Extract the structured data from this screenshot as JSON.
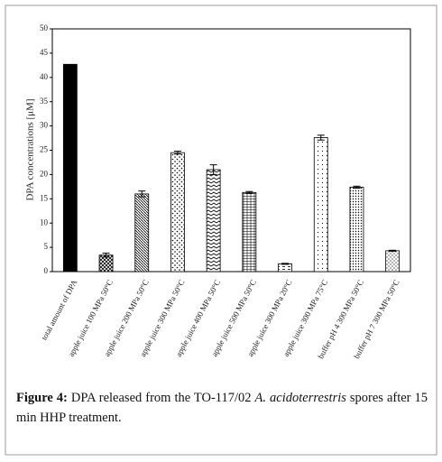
{
  "chart_data": {
    "type": "bar",
    "ylabel": "DPA concentrations  [μM]",
    "categories": [
      "total amount of DPA",
      "apple juice  100 MPa 50°C",
      "apple juice  200 MPa 50°C",
      "apple juice  300 MPa 50°C",
      "apple juice  400 MPa 50°C",
      "apple juice  500 MPa 50°C",
      "apple juice  300 MPa 20°C",
      "apple juice  300 MPa 75°C",
      "buffer pH 4  300 MPa 50°C",
      "buffer pH 7  300 MPa 50°C"
    ],
    "values": [
      42.7,
      3.4,
      16.0,
      24.5,
      21.0,
      16.3,
      1.6,
      27.6,
      17.4,
      4.3
    ],
    "errors": [
      null,
      0.4,
      0.6,
      0.3,
      1.0,
      0.2,
      0.1,
      0.5,
      0.2,
      0.1
    ],
    "ylim": [
      0,
      50
    ],
    "yticks": [
      0,
      5,
      10,
      15,
      20,
      25,
      30,
      35,
      40,
      45,
      50
    ],
    "grid": false
  },
  "caption": {
    "label": "Figure 4:",
    "text_before": "DPA released from the TO-117/02",
    "italic": "A. acidoterrestris",
    "text_after": "spores after 15 min HHP treatment."
  }
}
